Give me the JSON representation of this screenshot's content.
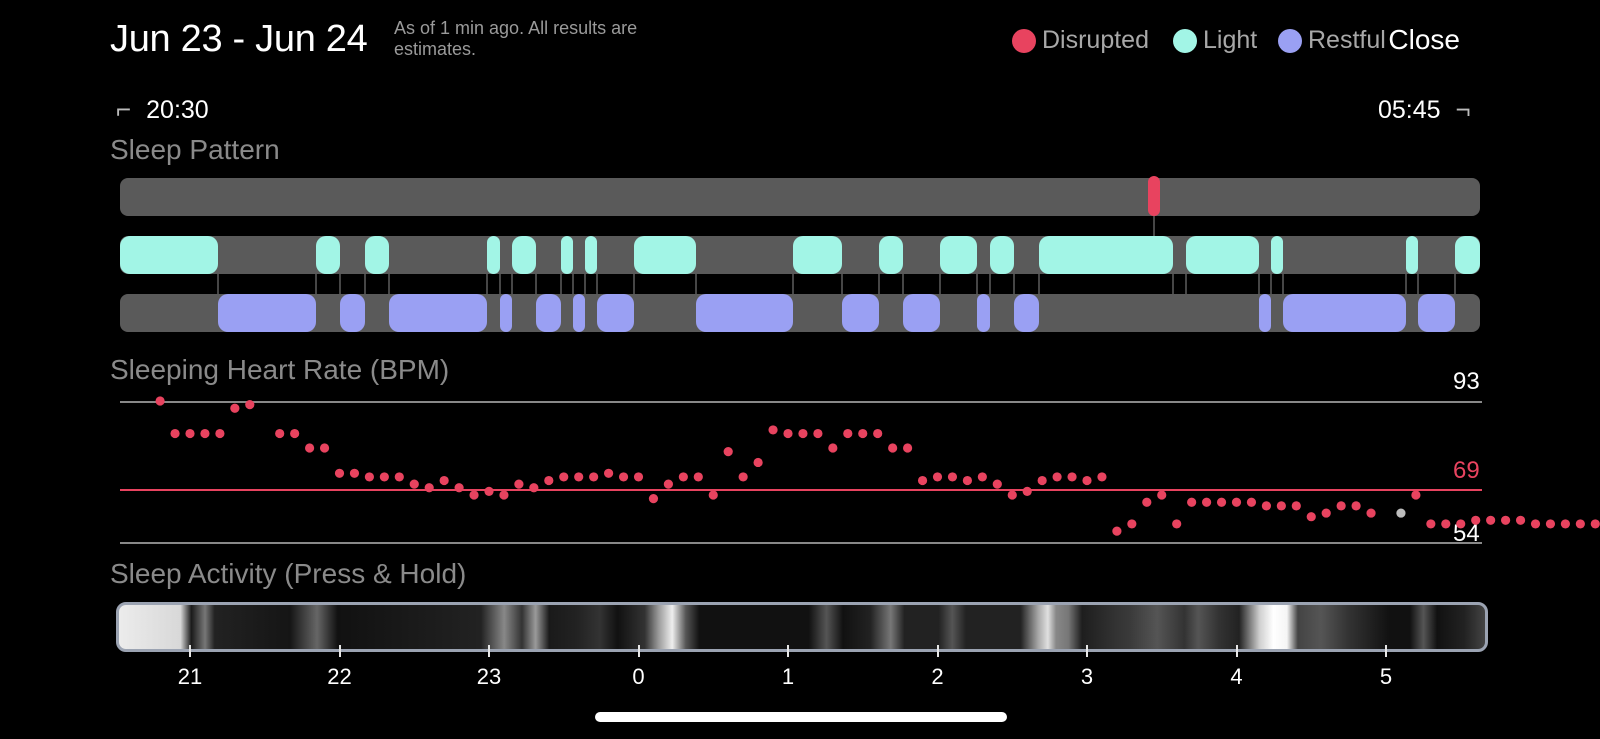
{
  "header": {
    "date_range": "Jun 23 - Jun 24",
    "note": "As of 1 min ago. All results are estimates.",
    "close_label": "Close"
  },
  "legend": [
    {
      "label": "Disrupted",
      "color": "#e8435f"
    },
    {
      "label": "Light",
      "color": "#a2f5e6"
    },
    {
      "label": "Restful",
      "color": "#9aa0f3"
    }
  ],
  "time_range": {
    "start": "20:30",
    "end": "05:45"
  },
  "sleep_pattern": {
    "title": "Sleep Pattern",
    "colors": {
      "track": "#5a5a5a",
      "disrupted": "#e8435f",
      "light": "#a2f5e6",
      "restful": "#9aa0f3",
      "connector": "#8c8c8c"
    },
    "disrupted": [
      [
        1148,
        1160
      ]
    ],
    "light": [
      [
        120,
        218
      ],
      [
        316,
        340
      ],
      [
        365,
        389
      ],
      [
        487,
        500
      ],
      [
        512,
        536
      ],
      [
        561,
        573
      ],
      [
        585,
        597
      ],
      [
        634,
        696
      ],
      [
        793,
        842
      ],
      [
        879,
        903
      ],
      [
        940,
        977
      ],
      [
        990,
        1014
      ],
      [
        1039,
        1173
      ],
      [
        1186,
        1259
      ],
      [
        1271,
        1283
      ],
      [
        1406,
        1418
      ],
      [
        1455,
        1480
      ]
    ],
    "restful": [
      [
        218,
        316
      ],
      [
        340,
        365
      ],
      [
        389,
        487
      ],
      [
        500,
        512
      ],
      [
        536,
        561
      ],
      [
        573,
        585
      ],
      [
        597,
        634
      ],
      [
        696,
        793
      ],
      [
        842,
        879
      ],
      [
        903,
        940
      ],
      [
        977,
        990
      ],
      [
        1014,
        1039
      ],
      [
        1259,
        1271
      ],
      [
        1283,
        1406
      ],
      [
        1418,
        1455
      ]
    ]
  },
  "heart_rate": {
    "title": "Sleeping Heart Rate (BPM)",
    "max": "93",
    "avg": "69",
    "min": "54",
    "colors": {
      "point": "#e8435f",
      "gray_point": "#bdbdbd",
      "avg_line": "#e8435f",
      "ref_line": "#888888"
    },
    "points": [
      [
        20.8,
        93
      ],
      [
        20.9,
        84
      ],
      [
        21.0,
        84
      ],
      [
        21.1,
        84
      ],
      [
        21.2,
        84
      ],
      [
        21.3,
        91
      ],
      [
        21.4,
        92
      ],
      [
        21.6,
        84
      ],
      [
        21.7,
        84
      ],
      [
        21.8,
        80
      ],
      [
        21.9,
        80
      ],
      [
        22.0,
        73
      ],
      [
        22.1,
        73
      ],
      [
        22.2,
        72
      ],
      [
        22.3,
        72
      ],
      [
        22.4,
        72
      ],
      [
        22.5,
        70
      ],
      [
        22.6,
        69
      ],
      [
        22.7,
        71
      ],
      [
        22.8,
        69
      ],
      [
        22.9,
        67
      ],
      [
        23.0,
        68
      ],
      [
        23.1,
        67
      ],
      [
        23.2,
        70
      ],
      [
        23.3,
        69
      ],
      [
        23.4,
        71
      ],
      [
        23.5,
        72
      ],
      [
        23.6,
        72
      ],
      [
        23.7,
        72
      ],
      [
        23.8,
        73
      ],
      [
        23.9,
        72
      ],
      [
        24.0,
        72
      ],
      [
        24.1,
        66
      ],
      [
        24.2,
        70
      ],
      [
        24.3,
        72
      ],
      [
        24.4,
        72
      ],
      [
        24.5,
        67
      ],
      [
        24.6,
        79
      ],
      [
        24.7,
        72
      ],
      [
        24.8,
        76
      ],
      [
        24.9,
        85
      ],
      [
        25.0,
        84
      ],
      [
        25.1,
        84
      ],
      [
        25.2,
        84
      ],
      [
        25.3,
        80
      ],
      [
        25.4,
        84
      ],
      [
        25.5,
        84
      ],
      [
        25.6,
        84
      ],
      [
        25.7,
        80
      ],
      [
        25.8,
        80
      ],
      [
        25.9,
        71
      ],
      [
        26.0,
        72
      ],
      [
        26.1,
        72
      ],
      [
        26.2,
        71
      ],
      [
        26.3,
        72
      ],
      [
        26.4,
        70
      ],
      [
        26.5,
        67
      ],
      [
        26.6,
        68
      ],
      [
        26.7,
        71
      ],
      [
        26.8,
        72
      ],
      [
        26.9,
        72
      ],
      [
        27.0,
        71
      ],
      [
        27.1,
        72
      ],
      [
        27.2,
        57
      ],
      [
        27.3,
        59
      ],
      [
        27.4,
        65
      ],
      [
        27.5,
        67
      ],
      [
        27.6,
        59
      ],
      [
        27.7,
        65
      ],
      [
        27.8,
        65
      ],
      [
        27.9,
        65
      ],
      [
        28.0,
        65
      ],
      [
        28.1,
        65
      ],
      [
        28.2,
        64
      ],
      [
        28.3,
        64
      ],
      [
        28.4,
        64
      ],
      [
        28.5,
        61
      ],
      [
        28.6,
        62
      ],
      [
        28.7,
        64
      ],
      [
        28.8,
        64
      ],
      [
        28.9,
        62
      ],
      [
        29.2,
        67
      ],
      [
        29.3,
        59
      ],
      [
        29.4,
        59
      ],
      [
        29.5,
        59
      ],
      [
        29.6,
        60
      ],
      [
        29.7,
        60
      ],
      [
        29.8,
        60
      ],
      [
        29.9,
        60
      ],
      [
        30.0,
        59
      ],
      [
        30.1,
        59
      ],
      [
        30.2,
        59
      ],
      [
        30.3,
        59
      ],
      [
        30.4,
        59
      ],
      [
        30.5,
        58
      ],
      [
        30.6,
        60
      ],
      [
        30.7,
        54
      ],
      [
        30.8,
        55
      ],
      [
        30.9,
        61
      ],
      [
        31.0,
        60
      ],
      [
        31.1,
        60
      ],
      [
        31.2,
        59
      ]
    ],
    "gray_point": [
      29.1,
      62
    ]
  },
  "sleep_activity": {
    "title": "Sleep Activity (Press & Hold)",
    "gradient": [
      [
        0,
        "#ececec"
      ],
      [
        4.5,
        "#d8d8d8"
      ],
      [
        5.3,
        "#1a1a1a"
      ],
      [
        6.3,
        "#777"
      ],
      [
        7.0,
        "#222"
      ],
      [
        12.5,
        "#151515"
      ],
      [
        14.5,
        "#666"
      ],
      [
        16,
        "#111"
      ],
      [
        26.5,
        "#222"
      ],
      [
        28.2,
        "#888"
      ],
      [
        29.5,
        "#333"
      ],
      [
        30.5,
        "#9a9a9a"
      ],
      [
        31.5,
        "#1a1a1a"
      ],
      [
        33.5,
        "#222"
      ],
      [
        35.2,
        "#333"
      ],
      [
        36.5,
        "#111"
      ],
      [
        38.5,
        "#333"
      ],
      [
        39.5,
        "#9a9a9a"
      ],
      [
        40.5,
        "#eeeeee"
      ],
      [
        41.5,
        "#555"
      ],
      [
        42.5,
        "#111"
      ],
      [
        50.5,
        "#111"
      ],
      [
        51.8,
        "#555"
      ],
      [
        53,
        "#111"
      ],
      [
        55,
        "#222"
      ],
      [
        56.5,
        "#777"
      ],
      [
        57.5,
        "#222"
      ],
      [
        60,
        "#222"
      ],
      [
        61,
        "#555"
      ],
      [
        62,
        "#222"
      ],
      [
        66,
        "#222"
      ],
      [
        67.3,
        "#a8a8a8"
      ],
      [
        68,
        "#e0e0e0"
      ],
      [
        68.6,
        "#888"
      ],
      [
        69.5,
        "#777"
      ],
      [
        70.5,
        "#1e1e1e"
      ],
      [
        73,
        "#333"
      ],
      [
        74,
        "#3a3a3a"
      ],
      [
        76,
        "#555"
      ],
      [
        78,
        "#333"
      ],
      [
        79,
        "#555"
      ],
      [
        80.5,
        "#333"
      ],
      [
        82,
        "#222"
      ],
      [
        83.5,
        "#cfcfcf"
      ],
      [
        84.5,
        "#ffffff"
      ],
      [
        85.5,
        "#f5f5f5"
      ],
      [
        86.3,
        "#444"
      ],
      [
        88,
        "#555"
      ],
      [
        90,
        "#333"
      ],
      [
        91.5,
        "#222"
      ],
      [
        93,
        "#111"
      ],
      [
        94.5,
        "#111"
      ],
      [
        95.5,
        "#555"
      ],
      [
        96.5,
        "#111"
      ],
      [
        98.5,
        "#222"
      ],
      [
        100,
        "#444"
      ]
    ]
  },
  "x_axis": [
    "21",
    "22",
    "23",
    "0",
    "1",
    "2",
    "3",
    "4",
    "5"
  ]
}
